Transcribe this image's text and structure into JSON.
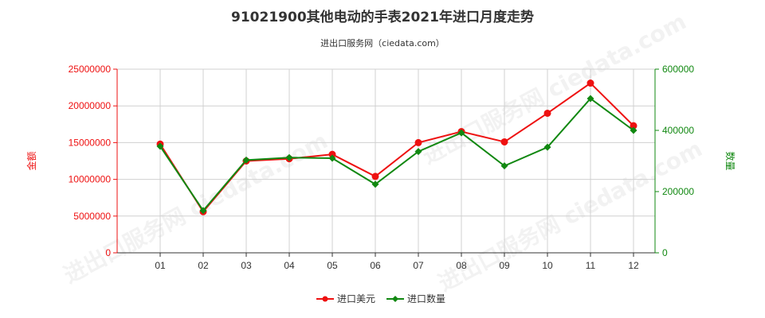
{
  "chart_data": {
    "type": "line",
    "title": "91021900其他电动的手表2021年进口月度走势",
    "subtitle": "进出口服务网（ciedata.com）",
    "categories": [
      "01",
      "02",
      "03",
      "04",
      "05",
      "06",
      "07",
      "08",
      "09",
      "10",
      "11",
      "12"
    ],
    "series": [
      {
        "name": "进口美元",
        "axis": "left",
        "color": "#ee1111",
        "values": [
          14800000,
          5600000,
          12500000,
          12800000,
          13400000,
          10400000,
          15000000,
          16500000,
          15100000,
          19000000,
          23100000,
          17300000
        ]
      },
      {
        "name": "进口数量",
        "axis": "right",
        "color": "#118811",
        "values": [
          348000,
          138000,
          303000,
          311000,
          309000,
          224000,
          331000,
          392000,
          284000,
          345000,
          504000,
          400000
        ]
      }
    ],
    "y_left": {
      "label": "金额",
      "color": "#ee1111",
      "ylim": [
        0,
        25000000
      ],
      "ticks": [
        "0",
        "5000000",
        "10000000",
        "15000000",
        "20000000",
        "25000000"
      ]
    },
    "y_right": {
      "label": "数量",
      "color": "#118811",
      "ylim": [
        0,
        600000
      ],
      "ticks": [
        "0",
        "200000",
        "400000",
        "600000"
      ]
    },
    "grid": true,
    "legend": "bottom-center",
    "watermark": "进出口服务网 ciedata.com"
  }
}
